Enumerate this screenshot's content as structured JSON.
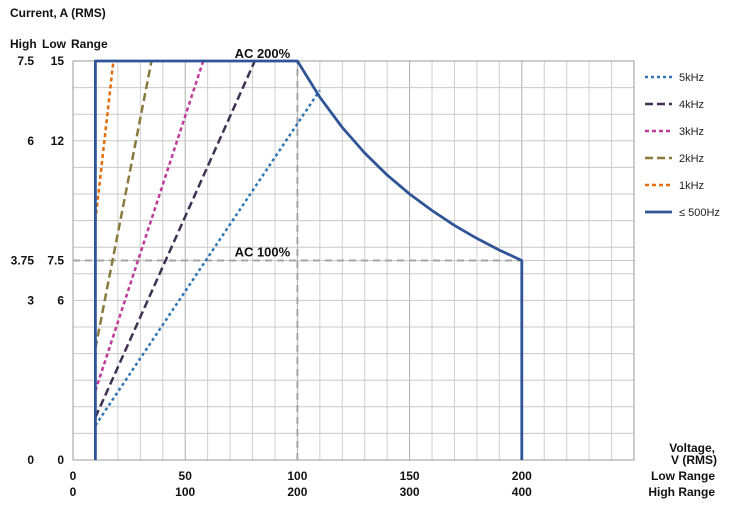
{
  "chart_data": {
    "type": "line",
    "y_title": "Current, A (RMS)",
    "y_col_high": "High",
    "y_col_low": "Low",
    "y_col_range": "Range",
    "y_ticks_low": [
      "15",
      "12",
      "7.5",
      "6",
      "0"
    ],
    "y_ticks_high": [
      "7.5",
      "6",
      "3.75",
      "3",
      "0"
    ],
    "y_tick_values": [
      15,
      12,
      7.5,
      6,
      0
    ],
    "x_ticks_low": [
      "0",
      "50",
      "100",
      "150",
      "200"
    ],
    "x_ticks_high": [
      "0",
      "100",
      "200",
      "300",
      "400"
    ],
    "x_tick_values": [
      0,
      50,
      100,
      150,
      200
    ],
    "x_title_line1": "Voltage,",
    "x_title_line2": "V (RMS)",
    "x_range_low": "Low Range",
    "x_range_high": "High Range",
    "xlim": [
      0,
      250
    ],
    "ylim": [
      0,
      15
    ],
    "grid": true,
    "legend_position": "right",
    "annotations": [
      {
        "text": "AC 200%",
        "x": 72,
        "y": 15
      },
      {
        "text": "AC 100%",
        "x": 72,
        "y": 7.5
      }
    ],
    "reference_lines": [
      {
        "type": "vertical",
        "x": 100,
        "y_from": 0,
        "y_to": 15,
        "color": "#a6a6a6"
      },
      {
        "type": "horizontal",
        "y": 7.5,
        "x_from": 0,
        "x_to": 200,
        "color": "#a6a6a6"
      }
    ],
    "series": [
      {
        "name": "5kHz",
        "color": "#2e75b6",
        "dash": "3,3",
        "x": [
          10,
          110
        ],
        "y": [
          1.3,
          13.9
        ]
      },
      {
        "name": "4kHz",
        "color": "#403152",
        "dash": "8,4",
        "x": [
          10,
          81
        ],
        "y": [
          1.6,
          15
        ]
      },
      {
        "name": "3kHz",
        "color": "#c0399b",
        "dash": "4,3",
        "x": [
          10,
          58
        ],
        "y": [
          2.6,
          15
        ]
      },
      {
        "name": "2kHz",
        "color": "#8a7a3e",
        "dash": "8,4",
        "x": [
          10,
          35
        ],
        "y": [
          4.2,
          15
        ]
      },
      {
        "name": "1kHz",
        "color": "#e46c0a",
        "dash": "4,3",
        "x": [
          10,
          18
        ],
        "y": [
          9,
          15
        ]
      },
      {
        "name": "≤ 500Hz",
        "color": "#2f5597",
        "dash": "",
        "x": [
          10,
          10,
          100,
          110,
          120,
          130,
          140,
          150,
          160,
          170,
          180,
          190,
          200,
          200
        ],
        "y": [
          0,
          15,
          15,
          13.64,
          12.5,
          11.54,
          10.71,
          10.0,
          9.38,
          8.82,
          8.33,
          7.89,
          7.5,
          0
        ]
      }
    ]
  }
}
